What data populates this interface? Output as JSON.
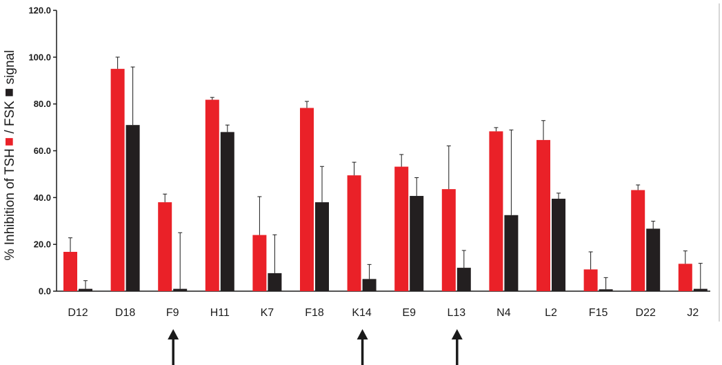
{
  "chart_data": {
    "type": "bar",
    "ylabel_parts": [
      "% Inhibition of  TSH",
      " / FSK ",
      " signal"
    ],
    "ylim": [
      0,
      120
    ],
    "yticks": [
      "0.0",
      "20.0",
      "40.0",
      "60.0",
      "80.0",
      "100.0",
      "120.0"
    ],
    "grid": false,
    "categories": [
      "D12",
      "D18",
      "F9",
      "H11",
      "K7",
      "F18",
      "K14",
      "E9",
      "L13",
      "N4",
      "L2",
      "F15",
      "D22",
      "J2"
    ],
    "series": [
      {
        "name": "TSH",
        "color": "#ea2128",
        "values": [
          16.8,
          95.0,
          38.0,
          81.8,
          24.0,
          78.3,
          49.5,
          53.2,
          43.6,
          68.3,
          64.6,
          9.3,
          43.2,
          11.7
        ],
        "errors": [
          6.0,
          5.0,
          3.5,
          1.0,
          16.4,
          2.8,
          5.6,
          5.2,
          18.5,
          1.6,
          8.3,
          7.5,
          2.2,
          5.5
        ]
      },
      {
        "name": "FSK",
        "color": "#231f20",
        "values": [
          1.0,
          71.0,
          1.0,
          68.0,
          7.7,
          38.0,
          5.2,
          40.7,
          10.0,
          32.5,
          39.5,
          0.8,
          26.7,
          1.0
        ],
        "errors": [
          3.5,
          24.8,
          24.0,
          3.0,
          16.4,
          15.3,
          6.2,
          7.8,
          7.4,
          36.4,
          2.4,
          5.0,
          3.2,
          10.9
        ]
      }
    ],
    "arrows_under": [
      "F9",
      "K14",
      "L13"
    ]
  }
}
